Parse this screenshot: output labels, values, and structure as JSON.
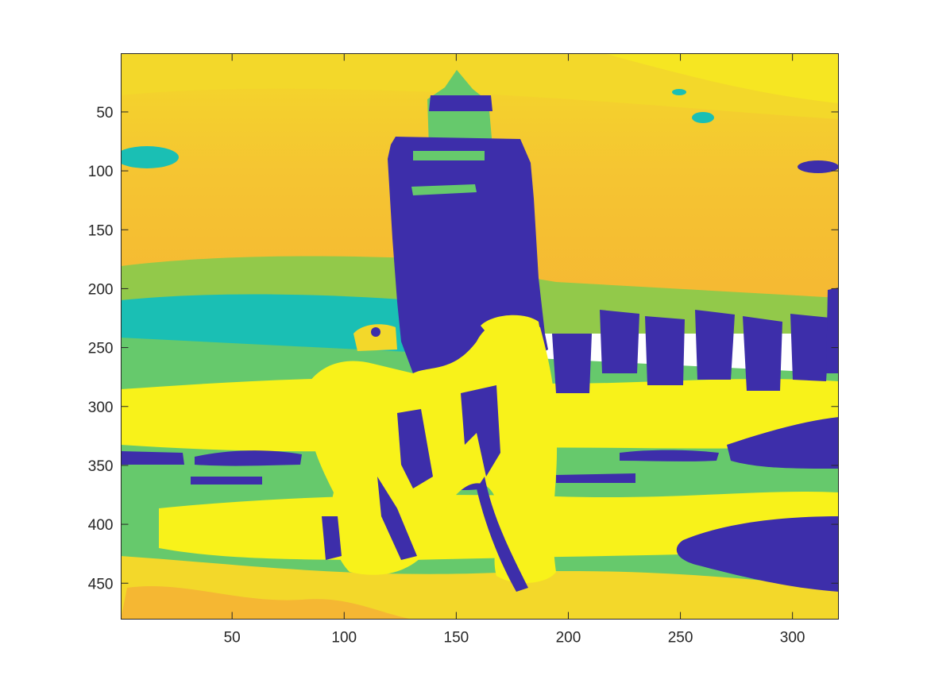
{
  "chart_data": {
    "type": "heatmap",
    "title": "",
    "xlabel": "",
    "ylabel": "",
    "xlim": [
      0.5,
      320.5
    ],
    "ylim": [
      0.5,
      480.5
    ],
    "y_direction": "reverse",
    "grid": false,
    "legend": "none",
    "xticks": [
      50,
      100,
      150,
      200,
      250,
      300
    ],
    "yticks": [
      50,
      100,
      150,
      200,
      250,
      300,
      350,
      400,
      450
    ],
    "xtick_labels": [
      "50",
      "100",
      "150",
      "200",
      "250",
      "300"
    ],
    "ytick_labels": [
      "50",
      "100",
      "150",
      "200",
      "250",
      "300",
      "350",
      "400",
      "450"
    ],
    "colormap": "parula",
    "palette": {
      "indigo": "#3D2EAA",
      "teal": "#1ABFB4",
      "green": "#66C96C",
      "lime": "#92C94A",
      "orange": "#F5B733",
      "gold": "#F3D82A",
      "yellow": "#F8F21A"
    },
    "regions": [
      {
        "name": "sky",
        "class": "orange",
        "x": [
          1,
          320
        ],
        "y": [
          1,
          205
        ]
      },
      {
        "name": "tower",
        "class": "indigo",
        "x": [
          120,
          187
        ],
        "y": [
          75,
          290
        ]
      },
      {
        "name": "water",
        "class": "teal",
        "x": [
          1,
          130
        ],
        "y": [
          205,
          265
        ]
      },
      {
        "name": "ground",
        "class": "yellow",
        "x": [
          1,
          320
        ],
        "y": [
          290,
          480
        ]
      },
      {
        "name": "pier-posts",
        "class": "indigo",
        "x": [
          195,
          320
        ],
        "y": [
          225,
          285
        ]
      },
      {
        "name": "shadow",
        "class": "indigo",
        "x": [
          255,
          320
        ],
        "y": [
          410,
          460
        ]
      }
    ]
  }
}
